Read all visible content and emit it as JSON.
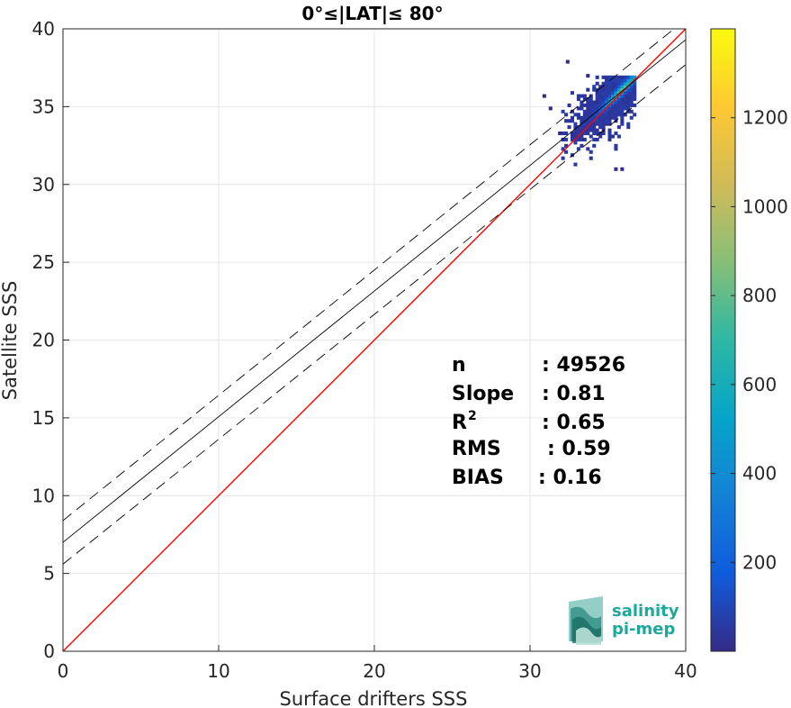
{
  "chart_data": {
    "type": "scatter",
    "title": "0°≤|LAT|≤ 80°",
    "xlabel": "Surface drifters SSS",
    "ylabel": "Satellite SSS",
    "xlim": [
      0,
      40
    ],
    "ylim": [
      0,
      40
    ],
    "xticks": [
      "0",
      "10",
      "20",
      "30",
      "40"
    ],
    "yticks": [
      "0",
      "5",
      "10",
      "15",
      "20",
      "25",
      "30",
      "35",
      "40"
    ],
    "grid": true,
    "lines": [
      {
        "name": "identity",
        "color": "#ff0000",
        "x": [
          0,
          40
        ],
        "y": [
          0,
          40
        ]
      },
      {
        "name": "fit",
        "color": "#000000",
        "x": [
          0,
          40
        ],
        "y": [
          7.0,
          39.3
        ]
      },
      {
        "name": "fit_upper",
        "color": "#000000",
        "dash": true,
        "x": [
          0,
          40
        ],
        "y": [
          8.4,
          40.6
        ]
      },
      {
        "name": "fit_lower",
        "color": "#000000",
        "dash": true,
        "x": [
          0,
          40
        ],
        "y": [
          5.6,
          37.7
        ]
      }
    ],
    "density": {
      "x_range": [
        32.0,
        36.8
      ],
      "y_range": [
        31.2,
        37.0
      ],
      "peak": [
        35.8,
        36.0
      ]
    },
    "colorbar": {
      "min": 0,
      "max": 1400,
      "ticks": [
        "200",
        "400",
        "600",
        "800",
        "1000",
        "1200"
      ],
      "colors": [
        "#352a87",
        "#0f5cdd",
        "#1481d6",
        "#06a4ca",
        "#2eb7a4",
        "#87bf77",
        "#d1bb59",
        "#fec832",
        "#f9fb0e"
      ]
    },
    "stats": [
      {
        "label": "n",
        "value": ": 49526"
      },
      {
        "label": "Slope",
        "value": ": 0.81"
      },
      {
        "label": "R",
        "sup": "2",
        "value": ": 0.65"
      },
      {
        "label": "RMS",
        "value": ": 0.59"
      },
      {
        "label": "BIAS",
        "value": ": 0.16"
      }
    ]
  },
  "logo": {
    "line1": "salinity",
    "line2": "pi-mep"
  }
}
